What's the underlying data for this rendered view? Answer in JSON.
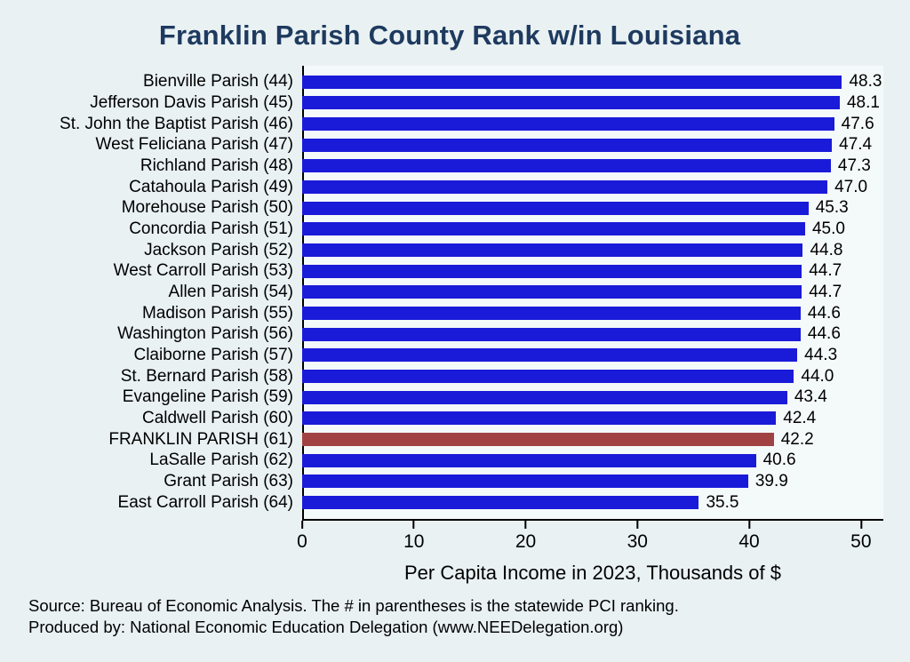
{
  "chart_data": {
    "type": "bar",
    "orientation": "horizontal",
    "title": "Franklin Parish County Rank w/in Louisiana",
    "categories": [
      "Bienville Parish (44)",
      "Jefferson Davis Parish (45)",
      "St. John the Baptist Parish (46)",
      "West Feliciana Parish (47)",
      "Richland Parish (48)",
      "Catahoula Parish (49)",
      "Morehouse Parish (50)",
      "Concordia Parish (51)",
      "Jackson Parish (52)",
      "West Carroll Parish (53)",
      "Allen Parish (54)",
      "Madison Parish (55)",
      "Washington Parish (56)",
      "Claiborne Parish (57)",
      "St. Bernard Parish (58)",
      "Evangeline Parish (59)",
      "Caldwell Parish (60)",
      "FRANKLIN PARISH (61)",
      "LaSalle Parish (62)",
      "Grant Parish (63)",
      "East Carroll Parish (64)"
    ],
    "values": [
      48.3,
      48.1,
      47.6,
      47.4,
      47.3,
      47.0,
      45.3,
      45.0,
      44.8,
      44.7,
      44.7,
      44.6,
      44.6,
      44.3,
      44.0,
      43.4,
      42.4,
      42.2,
      40.6,
      39.9,
      35.5
    ],
    "highlight_category": "FRANKLIN PARISH (61)",
    "highlight_index": 17,
    "bar_color": "#1A1AD9",
    "highlight_color": "#A04242",
    "xlabel": "Per Capita Income in 2023, Thousands of $",
    "xticks": [
      0,
      10,
      20,
      30,
      40,
      50
    ],
    "xlim": [
      0,
      52
    ],
    "value_labels": true,
    "legend": "none",
    "grid": false
  },
  "notes": {
    "source": "Source: Bureau of Economic Analysis. The # in parentheses is the statewide PCI ranking.",
    "produced": "Produced by: National Economic Education Delegation (www.NEEDelegation.org)"
  }
}
